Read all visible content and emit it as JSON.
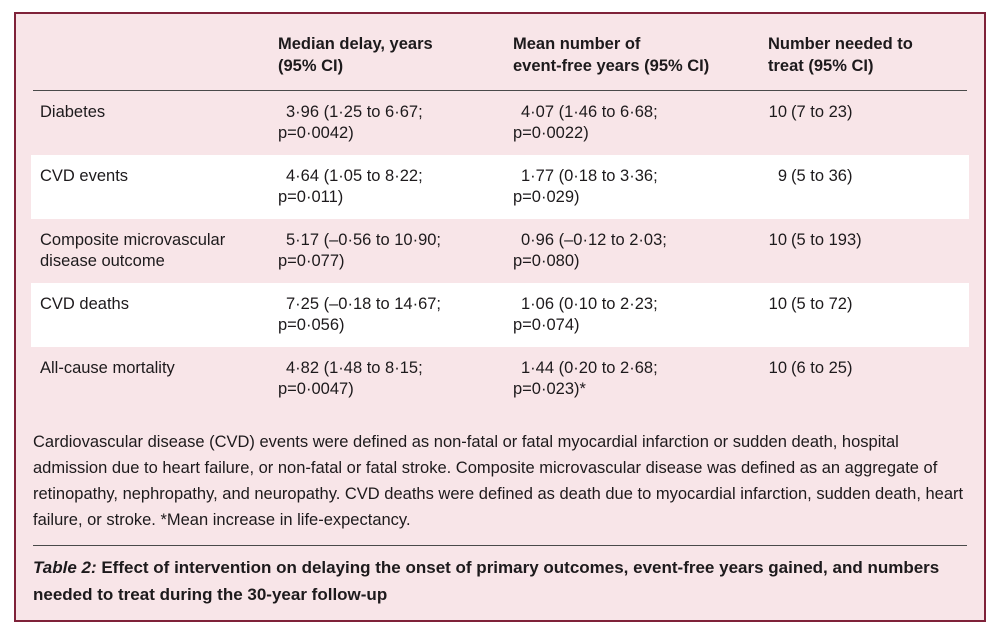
{
  "colors": {
    "frame_border": "#7f2239",
    "table_background": "#f8e5e8",
    "stripe_row": "#ffffff",
    "text": "#1d1a1c"
  },
  "table": {
    "headers": [
      {
        "line1": "Median delay, years",
        "line2": "(95% CI)"
      },
      {
        "line1": "Mean number of",
        "line2": "event-free years (95% CI)"
      },
      {
        "line1": "Number needed to",
        "line2": "treat (95% CI)"
      }
    ],
    "rows": [
      {
        "outcome": "Diabetes",
        "median_delay_line1": "3·96 (1·25 to 6·67;",
        "median_delay_line2": "p=0·0042)",
        "event_free_line1": "4·07 (1·46 to 6·68;",
        "event_free_line2": "p=0·0022)",
        "nnt_number": "10",
        "nnt_ci": "(7 to 23)"
      },
      {
        "outcome": "CVD events",
        "median_delay_line1": "4·64 (1·05 to 8·22;",
        "median_delay_line2": "p=0·011)",
        "event_free_line1": "1·77 (0·18 to 3·36;",
        "event_free_line2": "p=0·029)",
        "nnt_number": "9",
        "nnt_ci": "(5 to 36)"
      },
      {
        "outcome": "Composite microvascular disease outcome",
        "median_delay_line1": "5·17 (–0·56 to 10·90;",
        "median_delay_line2": "p=0·077)",
        "event_free_line1": "0·96 (–0·12 to 2·03;",
        "event_free_line2": "p=0·080)",
        "nnt_number": "10",
        "nnt_ci": "(5 to 193)"
      },
      {
        "outcome": "CVD deaths",
        "median_delay_line1": "7·25 (–0·18 to 14·67;",
        "median_delay_line2": "p=0·056)",
        "event_free_line1": "1·06 (0·10 to 2·23;",
        "event_free_line2": "p=0·074)",
        "nnt_number": "10",
        "nnt_ci": "(5 to 72)"
      },
      {
        "outcome": "All-cause mortality",
        "median_delay_line1": "4·82 (1·48 to 8·15;",
        "median_delay_line2": "p=0·0047)",
        "event_free_line1": "1·44 (0·20 to 2·68;",
        "event_free_line2": "p=0·023)*",
        "nnt_number": "10",
        "nnt_ci": "(6 to 25)"
      }
    ]
  },
  "footnote": "Cardiovascular disease (CVD) events were defined as non-fatal or fatal myocardial infarction or sudden death, hospital admission due to heart failure, or non-fatal or fatal stroke. Composite microvascular disease was defined as an aggregate of retinopathy, nephropathy, and neuropathy. CVD deaths were defined as death due to myocardial infarction, sudden death, heart failure, or stroke. *Mean increase in life-expectancy.",
  "caption": {
    "label": "Table 2:",
    "text": "Effect of intervention on delaying the onset of primary outcomes, event-free years gained, and numbers needed to treat during the 30-year follow-up"
  }
}
